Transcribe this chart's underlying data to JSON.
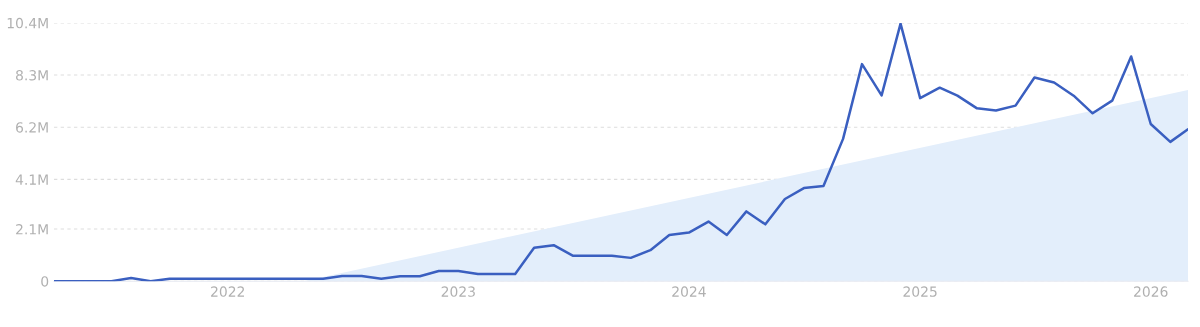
{
  "chart_data": {
    "type": "line",
    "x": [
      "2021-04",
      "2021-05",
      "2021-06",
      "2021-07",
      "2021-08",
      "2021-09",
      "2021-10",
      "2021-11",
      "2021-12",
      "2022-01",
      "2022-02",
      "2022-03",
      "2022-04",
      "2022-05",
      "2022-06",
      "2022-07",
      "2022-08",
      "2022-09",
      "2022-10",
      "2022-11",
      "2022-12",
      "2023-01",
      "2023-02",
      "2023-03",
      "2023-04",
      "2023-05",
      "2023-06",
      "2023-07",
      "2023-08",
      "2023-09",
      "2023-10",
      "2023-11",
      "2023-12",
      "2024-01",
      "2024-02",
      "2024-03",
      "2024-04",
      "2024-05",
      "2024-06",
      "2024-07",
      "2024-08",
      "2024-09",
      "2024-10",
      "2024-11",
      "2024-12",
      "2025-01",
      "2025-02",
      "2025-03",
      "2025-04",
      "2025-05",
      "2025-06",
      "2025-07",
      "2025-08",
      "2025-09",
      "2025-10",
      "2025-11",
      "2025-12",
      "2026-01",
      "2026-02",
      "2026-03"
    ],
    "series": [
      {
        "type": "area",
        "color": "#e3eefb",
        "x": [
          "2022-05",
          "2026-03"
        ],
        "values": [
          0,
          7.7
        ]
      },
      {
        "color": "#3a5fc0",
        "values": [
          0,
          0,
          0,
          0,
          0.13,
          0,
          0.1,
          0.1,
          0.1,
          0.1,
          0.1,
          0.1,
          0.1,
          0.1,
          0.1,
          0.21,
          0.21,
          0.1,
          0.2,
          0.2,
          0.41,
          0.41,
          0.29,
          0.29,
          0.29,
          1.35,
          1.45,
          1.03,
          1.03,
          1.03,
          0.94,
          1.25,
          1.86,
          1.96,
          2.4,
          1.86,
          2.81,
          2.29,
          3.31,
          3.75,
          3.83,
          5.73,
          8.74,
          7.48,
          10.37,
          7.37,
          7.79,
          7.47,
          6.96,
          6.87,
          7.07,
          8.2,
          8.0,
          7.47,
          6.76,
          7.27,
          9.05,
          6.33,
          5.61,
          6.12
        ]
      }
    ],
    "xlim": [
      "2021-04",
      "2026-03"
    ],
    "xticks": [
      {
        "value": "2022-01",
        "label": "2022"
      },
      {
        "value": "2023-01",
        "label": "2023"
      },
      {
        "value": "2024-01",
        "label": "2024"
      },
      {
        "value": "2025-01",
        "label": "2025"
      },
      {
        "value": "2026-01",
        "label": "2026"
      }
    ],
    "ylim": [
      0,
      10.4
    ],
    "yticks": [
      0,
      {
        "value": 2.1,
        "label": "2.1M"
      },
      {
        "value": 4.1,
        "label": "4.1M"
      },
      {
        "value": 6.2,
        "label": "6.2M"
      },
      {
        "value": 8.3,
        "label": "8.3M"
      },
      {
        "value": 10.4,
        "label": "10.4M"
      }
    ],
    "grid": "y",
    "marker": "none",
    "line_style": "solid"
  }
}
